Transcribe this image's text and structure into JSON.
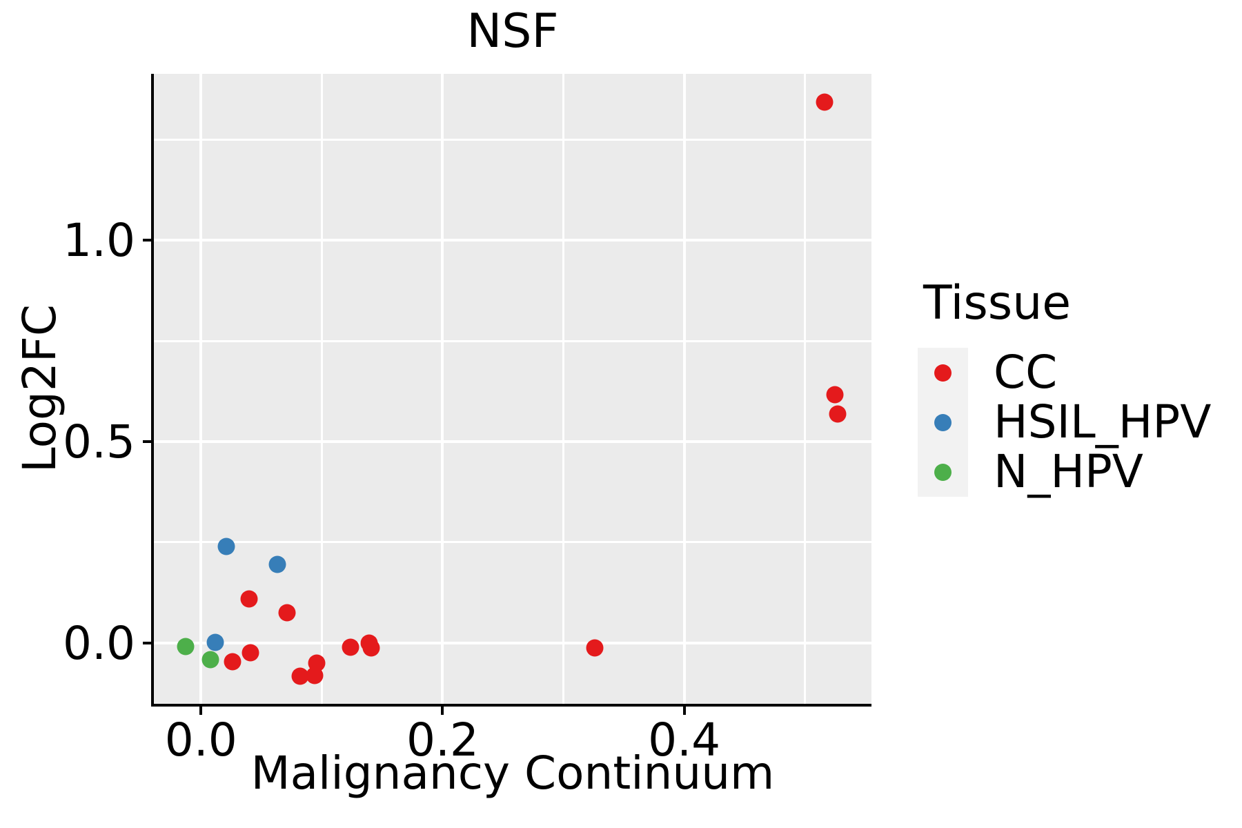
{
  "title": "NSF",
  "axes": {
    "x_label": "Malignancy Continuum",
    "y_label": "Log2FC"
  },
  "legend": {
    "title": "Tissue",
    "items": [
      {
        "label": "CC",
        "color": "#E41A1C"
      },
      {
        "label": "HSIL_HPV",
        "color": "#377EB8"
      },
      {
        "label": "N_HPV",
        "color": "#4DAF4A"
      }
    ]
  },
  "colors": {
    "panel_background": "#EBEBEB",
    "gridline": "#FFFFFF",
    "legend_key_background": "#F2F2F2",
    "spine": "#000000",
    "text": "#000000"
  },
  "chart_data": {
    "type": "scatter",
    "title": "NSF",
    "xlabel": "Malignancy Continuum",
    "ylabel": "Log2FC",
    "xlim": [
      -0.039,
      0.555
    ],
    "ylim": [
      -0.151,
      1.413
    ],
    "x_ticks": [
      0.0,
      0.2,
      0.4
    ],
    "x_tick_labels": [
      "0.0",
      "0.2",
      "0.4"
    ],
    "y_ticks": [
      0.0,
      0.5,
      1.0
    ],
    "y_tick_labels": [
      "0.0",
      "0.5",
      "1.0"
    ],
    "x_minor_gridlines": [
      0.1,
      0.3,
      0.5
    ],
    "y_minor_gridlines": [
      0.25,
      0.75,
      1.25
    ],
    "grid": true,
    "legend_position": "right",
    "legend_title": "Tissue",
    "series": [
      {
        "name": "CC",
        "color": "#E41A1C",
        "points": [
          [
            0.516,
            1.342
          ],
          [
            0.525,
            0.617
          ],
          [
            0.527,
            0.569
          ],
          [
            0.326,
            -0.013
          ],
          [
            0.124,
            -0.01
          ],
          [
            0.139,
            0.0
          ],
          [
            0.141,
            -0.012
          ],
          [
            0.04,
            0.11
          ],
          [
            0.071,
            0.075
          ],
          [
            0.041,
            -0.025
          ],
          [
            0.026,
            -0.046
          ],
          [
            0.082,
            -0.083
          ],
          [
            0.094,
            -0.08
          ],
          [
            0.096,
            -0.05
          ]
        ]
      },
      {
        "name": "HSIL_HPV",
        "color": "#377EB8",
        "points": [
          [
            0.021,
            0.239
          ],
          [
            0.063,
            0.195
          ],
          [
            0.012,
            0.002
          ]
        ]
      },
      {
        "name": "N_HPV",
        "color": "#4DAF4A",
        "points": [
          [
            -0.013,
            -0.008
          ],
          [
            0.008,
            -0.042
          ]
        ]
      }
    ]
  }
}
